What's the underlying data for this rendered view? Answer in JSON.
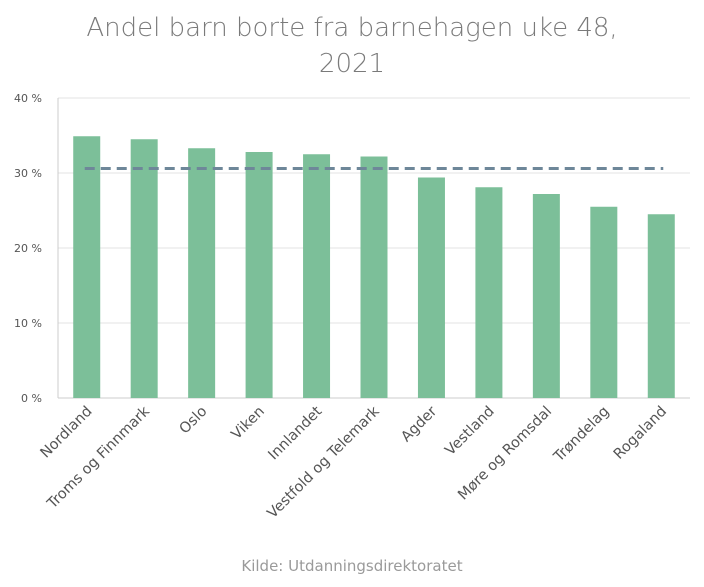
{
  "chart_data": {
    "type": "bar",
    "title_lines": [
      "Andel barn borte fra barnehagen uke 48,",
      "2021"
    ],
    "source": "Kilde: Utdanningsdirektoratet",
    "categories": [
      "Nordland",
      "Troms og Finnmark",
      "Oslo",
      "Viken",
      "Innlandet",
      "Vestfold og Telemark",
      "Agder",
      "Vestland",
      "Møre og Romsdal",
      "Trøndelag",
      "Rogaland"
    ],
    "values": [
      34.9,
      34.5,
      33.3,
      32.8,
      32.5,
      32.2,
      29.4,
      28.1,
      27.2,
      25.5,
      24.5
    ],
    "reference_line": 30.6,
    "ylim": [
      0,
      40
    ],
    "yticks": [
      {
        "value": 0,
        "label": "0 %"
      },
      {
        "value": 10,
        "label": "10 %"
      },
      {
        "value": 20,
        "label": "20 %"
      },
      {
        "value": 30,
        "label": "30 %"
      },
      {
        "value": 40,
        "label": "40 %"
      }
    ],
    "grid": true,
    "colors": {
      "bar": "#7cbf99",
      "reference": "#6e8799",
      "grid": "#e3e3e3",
      "axis": "#cccccc",
      "label": "#555555"
    }
  }
}
